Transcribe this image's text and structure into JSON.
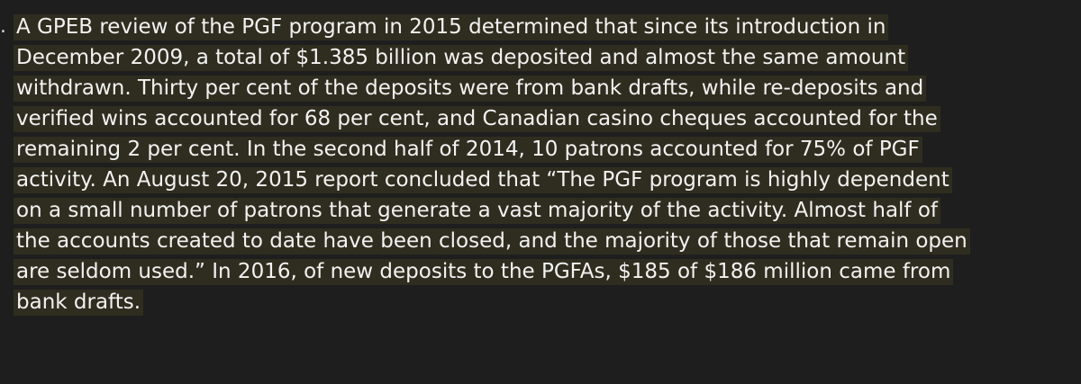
{
  "document": {
    "bullet": ".",
    "lines": [
      "A GPEB review of the PGF program in 2015 determined that since its introduction in",
      "December 2009, a total of $1.385 billion was deposited and almost the same amount",
      "withdrawn. Thirty per cent of the deposits were from bank drafts, while re-deposits and",
      "verified wins accounted for 68 per cent, and Canadian casino cheques accounted for the",
      "remaining 2 per cent. In the second half of 2014, 10 patrons accounted for 75% of PGF",
      "activity. An August 20, 2015 report concluded that “The PGF program is highly dependent",
      "on a small number of patrons that generate a vast majority of the activity. Almost half of",
      "the accounts created to date have been closed, and the majority of those that remain open",
      "are seldom used.” In 2016, of new deposits to the PGFAs, $185 of $186 million came from",
      "bank drafts."
    ]
  },
  "colors": {
    "background": "#1e1e1e",
    "text": "#f2f2f2",
    "highlight": "#2f2d1f"
  }
}
